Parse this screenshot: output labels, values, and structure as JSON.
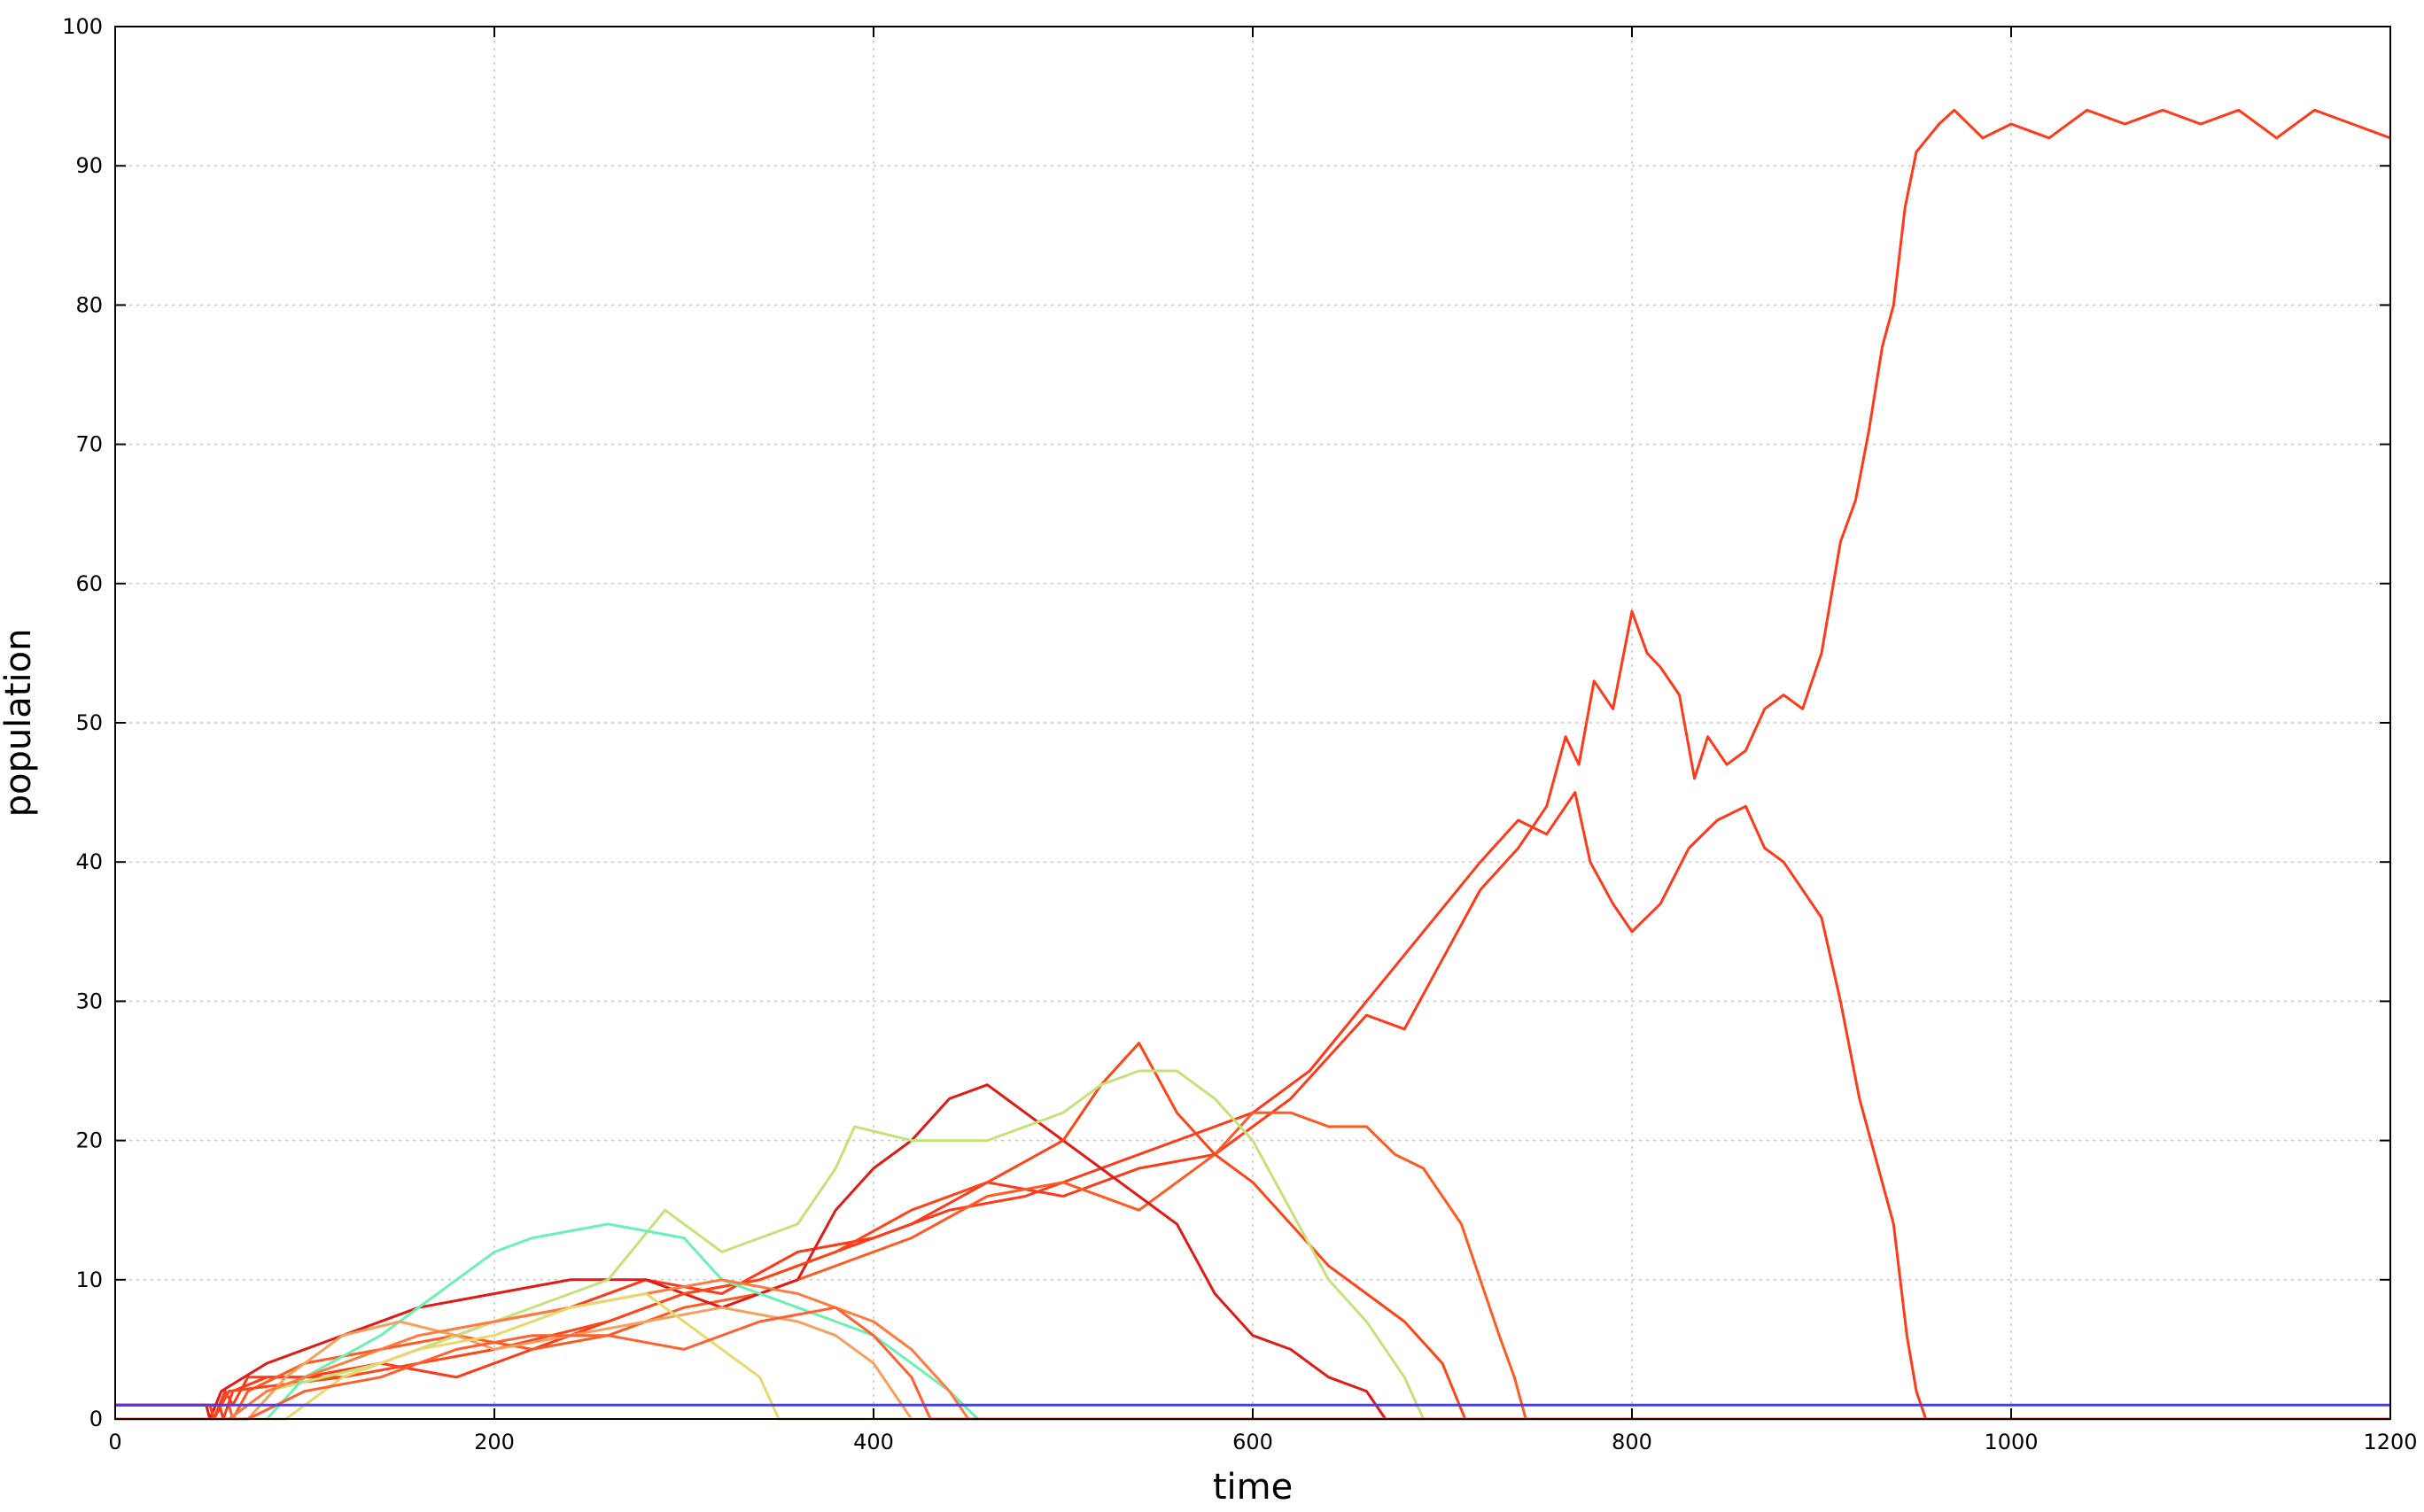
{
  "chart_data": {
    "type": "line",
    "title": "",
    "xlabel": "time",
    "ylabel": "population",
    "xlim": [
      0,
      1200
    ],
    "ylim": [
      0,
      100
    ],
    "xticks": [
      0,
      200,
      400,
      600,
      800,
      1000,
      1200
    ],
    "yticks": [
      0,
      10,
      20,
      30,
      40,
      50,
      60,
      70,
      80,
      90,
      100
    ],
    "grid": true,
    "legend": "none",
    "series": [
      {
        "color": "#ff3a1a",
        "points": [
          [
            0,
            1
          ],
          [
            50,
            1
          ],
          [
            52,
            0
          ],
          [
            58,
            2
          ],
          [
            62,
            1
          ],
          [
            70,
            3
          ],
          [
            100,
            3
          ],
          [
            140,
            4
          ],
          [
            180,
            3
          ],
          [
            220,
            5
          ],
          [
            260,
            7
          ],
          [
            300,
            9
          ],
          [
            340,
            10
          ],
          [
            380,
            12
          ],
          [
            420,
            14
          ],
          [
            460,
            17
          ],
          [
            500,
            16
          ],
          [
            540,
            18
          ],
          [
            580,
            19
          ],
          [
            620,
            23
          ],
          [
            640,
            26
          ],
          [
            660,
            29
          ],
          [
            680,
            28
          ],
          [
            700,
            33
          ],
          [
            720,
            38
          ],
          [
            740,
            41
          ],
          [
            755,
            44
          ],
          [
            765,
            49
          ],
          [
            772,
            47
          ],
          [
            780,
            53
          ],
          [
            790,
            51
          ],
          [
            800,
            58
          ],
          [
            808,
            55
          ],
          [
            815,
            54
          ],
          [
            825,
            52
          ],
          [
            833,
            46
          ],
          [
            840,
            49
          ],
          [
            850,
            47
          ],
          [
            860,
            48
          ],
          [
            870,
            51
          ],
          [
            880,
            52
          ],
          [
            890,
            51
          ],
          [
            900,
            55
          ],
          [
            910,
            63
          ],
          [
            918,
            66
          ],
          [
            925,
            71
          ],
          [
            932,
            77
          ],
          [
            938,
            80
          ],
          [
            944,
            87
          ],
          [
            950,
            91
          ],
          [
            956,
            92
          ],
          [
            962,
            93
          ],
          [
            970,
            94
          ],
          [
            985,
            92
          ],
          [
            1000,
            93
          ],
          [
            1020,
            92
          ],
          [
            1040,
            94
          ],
          [
            1060,
            93
          ],
          [
            1080,
            94
          ],
          [
            1100,
            93
          ],
          [
            1120,
            94
          ],
          [
            1140,
            92
          ],
          [
            1160,
            94
          ],
          [
            1180,
            93
          ],
          [
            1200,
            92
          ]
        ]
      },
      {
        "color": "#ff3a1a",
        "points": [
          [
            0,
            1
          ],
          [
            55,
            1
          ],
          [
            57,
            0
          ],
          [
            62,
            2
          ],
          [
            80,
            3
          ],
          [
            120,
            3
          ],
          [
            160,
            5
          ],
          [
            200,
            7
          ],
          [
            240,
            8
          ],
          [
            280,
            10
          ],
          [
            320,
            9
          ],
          [
            360,
            12
          ],
          [
            400,
            13
          ],
          [
            440,
            15
          ],
          [
            480,
            16
          ],
          [
            520,
            18
          ],
          [
            560,
            20
          ],
          [
            600,
            22
          ],
          [
            630,
            25
          ],
          [
            660,
            30
          ],
          [
            690,
            35
          ],
          [
            720,
            40
          ],
          [
            740,
            43
          ],
          [
            755,
            42
          ],
          [
            770,
            45
          ],
          [
            778,
            40
          ],
          [
            790,
            37
          ],
          [
            800,
            35
          ],
          [
            815,
            37
          ],
          [
            830,
            41
          ],
          [
            845,
            43
          ],
          [
            860,
            44
          ],
          [
            870,
            41
          ],
          [
            880,
            40
          ],
          [
            890,
            38
          ],
          [
            900,
            36
          ],
          [
            910,
            30
          ],
          [
            920,
            23
          ],
          [
            930,
            18
          ],
          [
            938,
            14
          ],
          [
            945,
            6
          ],
          [
            950,
            2
          ],
          [
            955,
            0
          ],
          [
            1200,
            0
          ]
        ]
      },
      {
        "color": "#ff5a22",
        "points": [
          [
            0,
            1
          ],
          [
            60,
            1
          ],
          [
            62,
            0
          ],
          [
            70,
            2
          ],
          [
            100,
            4
          ],
          [
            140,
            5
          ],
          [
            180,
            6
          ],
          [
            220,
            5
          ],
          [
            260,
            6
          ],
          [
            300,
            8
          ],
          [
            340,
            9
          ],
          [
            380,
            11
          ],
          [
            420,
            13
          ],
          [
            460,
            16
          ],
          [
            500,
            17
          ],
          [
            540,
            15
          ],
          [
            580,
            19
          ],
          [
            600,
            22
          ],
          [
            620,
            22
          ],
          [
            640,
            21
          ],
          [
            660,
            21
          ],
          [
            675,
            19
          ],
          [
            690,
            18
          ],
          [
            700,
            16
          ],
          [
            710,
            14
          ],
          [
            720,
            10
          ],
          [
            730,
            6
          ],
          [
            738,
            3
          ],
          [
            744,
            0
          ],
          [
            1200,
            0
          ]
        ]
      },
      {
        "color": "#e01a14",
        "points": [
          [
            0,
            1
          ],
          [
            48,
            1
          ],
          [
            50,
            0
          ],
          [
            56,
            2
          ],
          [
            80,
            4
          ],
          [
            120,
            6
          ],
          [
            160,
            8
          ],
          [
            200,
            9
          ],
          [
            240,
            10
          ],
          [
            280,
            10
          ],
          [
            320,
            8
          ],
          [
            360,
            10
          ],
          [
            380,
            15
          ],
          [
            400,
            18
          ],
          [
            420,
            20
          ],
          [
            440,
            23
          ],
          [
            460,
            24
          ],
          [
            480,
            22
          ],
          [
            500,
            20
          ],
          [
            520,
            18
          ],
          [
            540,
            16
          ],
          [
            560,
            14
          ],
          [
            580,
            9
          ],
          [
            600,
            6
          ],
          [
            620,
            5
          ],
          [
            640,
            3
          ],
          [
            660,
            2
          ],
          [
            670,
            0
          ],
          [
            1200,
            0
          ]
        ]
      },
      {
        "color": "#ff4418",
        "points": [
          [
            0,
            1
          ],
          [
            50,
            1
          ],
          [
            52,
            0
          ],
          [
            60,
            2
          ],
          [
            120,
            3
          ],
          [
            200,
            5
          ],
          [
            260,
            7
          ],
          [
            300,
            9
          ],
          [
            340,
            10
          ],
          [
            380,
            12
          ],
          [
            420,
            15
          ],
          [
            460,
            17
          ],
          [
            500,
            20
          ],
          [
            520,
            24
          ],
          [
            540,
            27
          ],
          [
            560,
            22
          ],
          [
            580,
            19
          ],
          [
            600,
            17
          ],
          [
            620,
            14
          ],
          [
            640,
            11
          ],
          [
            660,
            9
          ],
          [
            680,
            7
          ],
          [
            700,
            4
          ],
          [
            712,
            0
          ],
          [
            1200,
            0
          ]
        ]
      },
      {
        "color": "#c5e27a",
        "points": [
          [
            0,
            0
          ],
          [
            60,
            0
          ],
          [
            80,
            2
          ],
          [
            140,
            4
          ],
          [
            200,
            7
          ],
          [
            260,
            10
          ],
          [
            290,
            15
          ],
          [
            320,
            12
          ],
          [
            360,
            14
          ],
          [
            380,
            18
          ],
          [
            390,
            21
          ],
          [
            420,
            20
          ],
          [
            460,
            20
          ],
          [
            500,
            22
          ],
          [
            520,
            24
          ],
          [
            540,
            25
          ],
          [
            560,
            25
          ],
          [
            580,
            23
          ],
          [
            600,
            20
          ],
          [
            620,
            15
          ],
          [
            640,
            10
          ],
          [
            660,
            7
          ],
          [
            680,
            3
          ],
          [
            690,
            0
          ],
          [
            1200,
            0
          ]
        ]
      },
      {
        "color": "#6cf0b4",
        "points": [
          [
            0,
            0
          ],
          [
            80,
            0
          ],
          [
            100,
            3
          ],
          [
            140,
            6
          ],
          [
            170,
            9
          ],
          [
            200,
            12
          ],
          [
            220,
            13
          ],
          [
            260,
            14
          ],
          [
            300,
            13
          ],
          [
            320,
            10
          ],
          [
            340,
            9
          ],
          [
            360,
            8
          ],
          [
            380,
            7
          ],
          [
            400,
            6
          ],
          [
            420,
            4
          ],
          [
            440,
            2
          ],
          [
            455,
            0
          ],
          [
            1200,
            0
          ]
        ]
      },
      {
        "color": "#f6a060",
        "points": [
          [
            0,
            0
          ],
          [
            70,
            0
          ],
          [
            90,
            3
          ],
          [
            120,
            6
          ],
          [
            150,
            7
          ],
          [
            180,
            6
          ],
          [
            200,
            5
          ],
          [
            240,
            6
          ],
          [
            280,
            7
          ],
          [
            320,
            8
          ],
          [
            360,
            7
          ],
          [
            380,
            6
          ],
          [
            400,
            4
          ],
          [
            410,
            2
          ],
          [
            420,
            0
          ],
          [
            1200,
            0
          ]
        ]
      },
      {
        "color": "#ff7a3c",
        "points": [
          [
            0,
            0
          ],
          [
            60,
            0
          ],
          [
            80,
            2
          ],
          [
            120,
            4
          ],
          [
            160,
            6
          ],
          [
            200,
            7
          ],
          [
            240,
            8
          ],
          [
            280,
            9
          ],
          [
            320,
            10
          ],
          [
            360,
            9
          ],
          [
            400,
            7
          ],
          [
            420,
            5
          ],
          [
            440,
            2
          ],
          [
            450,
            0
          ],
          [
            1200,
            0
          ]
        ]
      },
      {
        "color": "#e8d870",
        "points": [
          [
            0,
            0
          ],
          [
            90,
            0
          ],
          [
            120,
            3
          ],
          [
            160,
            5
          ],
          [
            200,
            6
          ],
          [
            240,
            8
          ],
          [
            280,
            9
          ],
          [
            300,
            7
          ],
          [
            320,
            5
          ],
          [
            340,
            3
          ],
          [
            350,
            0
          ],
          [
            1200,
            0
          ]
        ]
      },
      {
        "color": "#ff6030",
        "points": [
          [
            0,
            0
          ],
          [
            70,
            0
          ],
          [
            100,
            2
          ],
          [
            140,
            3
          ],
          [
            180,
            5
          ],
          [
            220,
            6
          ],
          [
            260,
            6
          ],
          [
            300,
            5
          ],
          [
            340,
            7
          ],
          [
            380,
            8
          ],
          [
            400,
            6
          ],
          [
            420,
            3
          ],
          [
            430,
            0
          ],
          [
            1200,
            0
          ]
        ]
      },
      {
        "color": "#4a3cf0",
        "points": [
          [
            0,
            1
          ],
          [
            1200,
            1
          ]
        ]
      }
    ]
  }
}
